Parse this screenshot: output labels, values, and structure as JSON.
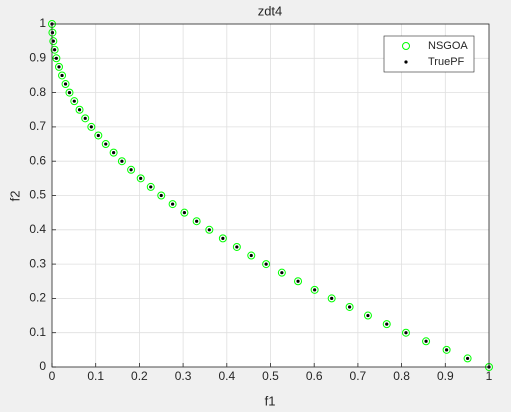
{
  "chart_data": {
    "type": "scatter",
    "title": "zdt4",
    "x_label": "f1",
    "y_label": "f2",
    "xlim": [
      0,
      1
    ],
    "ylim": [
      0,
      1
    ],
    "xticks": [
      0,
      0.1,
      0.2,
      0.3,
      0.4,
      0.5,
      0.6,
      0.7,
      0.8,
      0.9,
      1
    ],
    "yticks": [
      0,
      0.1,
      0.2,
      0.3,
      0.4,
      0.5,
      0.6,
      0.7,
      0.8,
      0.9,
      1
    ],
    "grid": true,
    "legend": "northeast",
    "series": [
      {
        "name": "NSGOA",
        "color": "#00ff00",
        "marker": "o",
        "x": [
          0,
          0.001,
          0.003,
          0.006,
          0.01,
          0.016,
          0.023,
          0.031,
          0.04,
          0.051,
          0.063,
          0.076,
          0.09,
          0.106,
          0.123,
          0.141,
          0.16,
          0.181,
          0.203,
          0.226,
          0.25,
          0.276,
          0.303,
          0.331,
          0.36,
          0.391,
          0.423,
          0.456,
          0.49,
          0.526,
          0.563,
          0.601,
          0.64,
          0.681,
          0.723,
          0.766,
          0.81,
          0.856,
          0.903,
          0.951,
          1
        ],
        "values": [
          1,
          0.975,
          0.95,
          0.925,
          0.9,
          0.875,
          0.85,
          0.825,
          0.8,
          0.775,
          0.75,
          0.725,
          0.7,
          0.675,
          0.65,
          0.625,
          0.6,
          0.575,
          0.55,
          0.525,
          0.5,
          0.475,
          0.45,
          0.425,
          0.4,
          0.375,
          0.35,
          0.325,
          0.3,
          0.275,
          0.25,
          0.225,
          0.2,
          0.175,
          0.15,
          0.125,
          0.1,
          0.075,
          0.05,
          0.025,
          0
        ]
      },
      {
        "name": "TruePF",
        "color": "#000000",
        "marker": ".",
        "x": [
          0,
          0.001,
          0.003,
          0.006,
          0.01,
          0.016,
          0.023,
          0.031,
          0.04,
          0.051,
          0.063,
          0.076,
          0.09,
          0.106,
          0.123,
          0.141,
          0.16,
          0.181,
          0.203,
          0.226,
          0.25,
          0.276,
          0.303,
          0.331,
          0.36,
          0.391,
          0.423,
          0.456,
          0.49,
          0.526,
          0.563,
          0.601,
          0.64,
          0.681,
          0.723,
          0.766,
          0.81,
          0.856,
          0.903,
          0.951,
          1
        ],
        "values": [
          1,
          0.975,
          0.95,
          0.925,
          0.9,
          0.875,
          0.85,
          0.825,
          0.8,
          0.775,
          0.75,
          0.725,
          0.7,
          0.675,
          0.65,
          0.625,
          0.6,
          0.575,
          0.55,
          0.525,
          0.5,
          0.475,
          0.45,
          0.425,
          0.4,
          0.375,
          0.35,
          0.325,
          0.3,
          0.275,
          0.25,
          0.225,
          0.2,
          0.175,
          0.15,
          0.125,
          0.1,
          0.075,
          0.05,
          0.025,
          0
        ]
      }
    ]
  }
}
